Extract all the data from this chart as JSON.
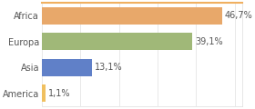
{
  "categories": [
    "America",
    "Asia",
    "Europa",
    "Africa"
  ],
  "values": [
    1.1,
    13.1,
    39.1,
    46.7
  ],
  "labels": [
    "1,1%",
    "13,1%",
    "39,1%",
    "46,7%"
  ],
  "bar_colors": [
    "#f0c060",
    "#6080c8",
    "#a0b878",
    "#e8a86a"
  ],
  "xlim": [
    0,
    52
  ],
  "background_color": "#ffffff",
  "label_fontsize": 7.0,
  "tick_fontsize": 7.0,
  "bar_height": 0.65
}
